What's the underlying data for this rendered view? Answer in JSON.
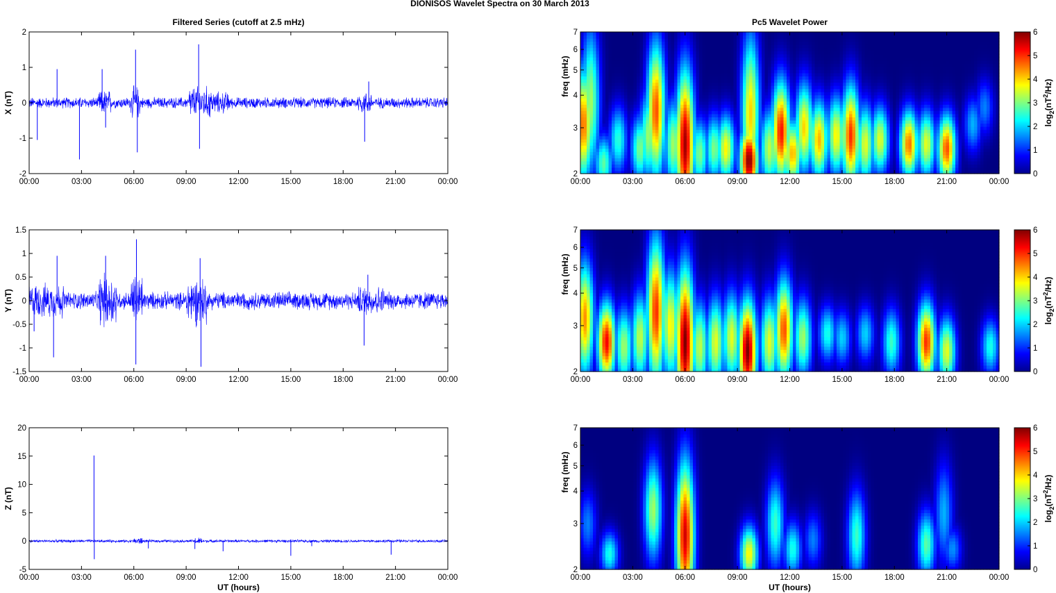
{
  "figure": {
    "suptitle": "DIONISOS Wavelet Spectra on 30 March     2013",
    "left_title": "Filtered Series (cutoff at 2.5 mHz)",
    "right_title": "Pc5 Wavelet Power"
  },
  "chart_data": [
    {
      "type": "line",
      "title": "Filtered Series (cutoff at 2.5 mHz)",
      "xlabel": "",
      "ylabel": "X (nT)",
      "xlim": [
        "00:00",
        "00:00"
      ],
      "xticks": [
        "00:00",
        "03:00",
        "06:00",
        "09:00",
        "12:00",
        "15:00",
        "18:00",
        "21:00",
        "00:00"
      ],
      "ylim": [
        -2,
        2
      ],
      "yticks": [
        "-2",
        "-1",
        "0",
        "1",
        "2"
      ],
      "yticks_values": [
        -2,
        -1,
        0,
        1,
        2
      ],
      "series_color": "#0000ff",
      "background_amplitude_nT": 0.15,
      "spikes": [
        {
          "x": "00:28",
          "y": -1.05
        },
        {
          "x": "01:36",
          "y": 0.95
        },
        {
          "x": "02:53",
          "y": -1.6
        },
        {
          "x": "04:11",
          "y": 0.95
        },
        {
          "x": "04:23",
          "y": -0.7
        },
        {
          "x": "06:06",
          "y": 1.5
        },
        {
          "x": "06:12",
          "y": -1.4
        },
        {
          "x": "09:43",
          "y": 1.65
        },
        {
          "x": "09:46",
          "y": -1.3
        },
        {
          "x": "19:14",
          "y": -1.1
        },
        {
          "x": "19:28",
          "y": 0.6
        }
      ],
      "bursts": [
        {
          "start": "04:00",
          "end": "04:40",
          "amp": 0.35
        },
        {
          "start": "05:50",
          "end": "06:20",
          "amp": 0.45
        },
        {
          "start": "09:10",
          "end": "10:30",
          "amp": 0.45
        },
        {
          "start": "10:30",
          "end": "11:30",
          "amp": 0.3
        },
        {
          "start": "18:50",
          "end": "19:40",
          "amp": 0.3
        }
      ]
    },
    {
      "type": "line",
      "title": "",
      "xlabel": "",
      "ylabel": "Y (nT)",
      "xlim": [
        "00:00",
        "00:00"
      ],
      "xticks": [
        "00:00",
        "03:00",
        "06:00",
        "09:00",
        "12:00",
        "15:00",
        "18:00",
        "21:00",
        "00:00"
      ],
      "ylim": [
        -1.5,
        1.5
      ],
      "yticks": [
        "-1.5",
        "-1",
        "-0.5",
        "0",
        "0.5",
        "1",
        "1.5"
      ],
      "yticks_values": [
        -1.5,
        -1,
        -0.5,
        0,
        0.5,
        1,
        1.5
      ],
      "series_color": "#0000ff",
      "background_amplitude_nT": 0.18,
      "spikes": [
        {
          "x": "00:17",
          "y": -0.65
        },
        {
          "x": "01:24",
          "y": -1.2
        },
        {
          "x": "01:36",
          "y": 0.95
        },
        {
          "x": "04:23",
          "y": 0.95
        },
        {
          "x": "06:09",
          "y": 1.3
        },
        {
          "x": "06:07",
          "y": -1.35
        },
        {
          "x": "09:48",
          "y": 0.9
        },
        {
          "x": "09:51",
          "y": -1.4
        },
        {
          "x": "19:12",
          "y": -0.95
        },
        {
          "x": "19:25",
          "y": 0.55
        }
      ],
      "bursts": [
        {
          "start": "04:00",
          "end": "05:00",
          "amp": 0.55
        },
        {
          "start": "05:50",
          "end": "06:30",
          "amp": 0.55
        },
        {
          "start": "09:00",
          "end": "10:10",
          "amp": 0.5
        },
        {
          "start": "00:00",
          "end": "02:00",
          "amp": 0.35
        },
        {
          "start": "18:50",
          "end": "20:20",
          "amp": 0.3
        }
      ]
    },
    {
      "type": "line",
      "title": "",
      "xlabel": "UT (hours)",
      "ylabel": "Z (nT)",
      "xlim": [
        "00:00",
        "00:00"
      ],
      "xticks": [
        "00:00",
        "03:00",
        "06:00",
        "09:00",
        "12:00",
        "15:00",
        "18:00",
        "21:00",
        "00:00"
      ],
      "ylim": [
        -5,
        20
      ],
      "yticks": [
        "-5",
        "0",
        "5",
        "10",
        "15",
        "20"
      ],
      "yticks_values": [
        -5,
        0,
        5,
        10,
        15,
        20
      ],
      "series_color": "#0000ff",
      "background_amplitude_nT": 0.25,
      "spikes": [
        {
          "x": "03:43",
          "y": 15.1
        },
        {
          "x": "03:44",
          "y": -3.2
        },
        {
          "x": "06:50",
          "y": -1.3
        },
        {
          "x": "09:30",
          "y": -1.4
        },
        {
          "x": "11:07",
          "y": -1.8
        },
        {
          "x": "15:00",
          "y": -2.6
        },
        {
          "x": "16:12",
          "y": -0.9
        },
        {
          "x": "20:45",
          "y": -2.4
        }
      ],
      "bursts": [
        {
          "start": "06:00",
          "end": "06:30",
          "amp": 0.6
        },
        {
          "start": "09:30",
          "end": "10:00",
          "amp": 0.6
        }
      ]
    },
    {
      "type": "heatmap",
      "title": "Pc5 Wavelet Power",
      "xlabel": "",
      "ylabel": "freq (mHz)",
      "xticks": [
        "00:00",
        "03:00",
        "06:00",
        "09:00",
        "12:00",
        "15:00",
        "18:00",
        "21:00",
        "00:00"
      ],
      "yscale": "log",
      "ylim": [
        2,
        7
      ],
      "yticks": [
        "2",
        "3",
        "4",
        "5",
        "6",
        "7"
      ],
      "yticks_values": [
        2,
        3,
        4,
        5,
        6,
        7
      ],
      "colorbar": {
        "label": "log2(nT2/Hz)",
        "label_main": "log",
        "label_sub": "2",
        "label_rest": "(nT",
        "label_sup": "2",
        "label_end": "/Hz)",
        "range": [
          0,
          6
        ],
        "ticks": [
          "0",
          "1",
          "2",
          "3",
          "4",
          "5",
          "6"
        ],
        "colormap": "jet"
      },
      "blobs": [
        {
          "t": "00:10",
          "f": 3.1,
          "power": 4.6,
          "fwidth": 1.0
        },
        {
          "t": "00:35",
          "f": 3.8,
          "power": 3.2,
          "fwidth": 1.3
        },
        {
          "t": "01:20",
          "f": 2.2,
          "power": 2.8,
          "fwidth": 0.5
        },
        {
          "t": "02:10",
          "f": 2.7,
          "power": 2.5,
          "fwidth": 0.6
        },
        {
          "t": "03:25",
          "f": 2.5,
          "power": 3.0,
          "fwidth": 0.6
        },
        {
          "t": "03:55",
          "f": 2.8,
          "power": 3.2,
          "fwidth": 0.8
        },
        {
          "t": "04:20",
          "f": 3.5,
          "power": 4.8,
          "fwidth": 1.2
        },
        {
          "t": "05:20",
          "f": 2.6,
          "power": 3.2,
          "fwidth": 0.8
        },
        {
          "t": "06:00",
          "f": 2.6,
          "power": 5.8,
          "fwidth": 1.3
        },
        {
          "t": "06:50",
          "f": 2.4,
          "power": 3.0,
          "fwidth": 0.6
        },
        {
          "t": "07:40",
          "f": 2.5,
          "power": 3.0,
          "fwidth": 0.6
        },
        {
          "t": "08:20",
          "f": 2.5,
          "power": 3.8,
          "fwidth": 0.6
        },
        {
          "t": "09:40",
          "f": 2.25,
          "power": 6.0,
          "fwidth": 0.6
        },
        {
          "t": "09:45",
          "f": 3.4,
          "power": 4.0,
          "fwidth": 1.4
        },
        {
          "t": "10:50",
          "f": 2.5,
          "power": 3.4,
          "fwidth": 0.7
        },
        {
          "t": "11:30",
          "f": 2.9,
          "power": 5.2,
          "fwidth": 0.9
        },
        {
          "t": "12:10",
          "f": 2.4,
          "power": 4.2,
          "fwidth": 0.6
        },
        {
          "t": "12:50",
          "f": 3.0,
          "power": 4.0,
          "fwidth": 0.8
        },
        {
          "t": "13:40",
          "f": 2.7,
          "power": 4.2,
          "fwidth": 0.7
        },
        {
          "t": "14:40",
          "f": 2.8,
          "power": 3.8,
          "fwidth": 0.7
        },
        {
          "t": "15:30",
          "f": 2.8,
          "power": 5.0,
          "fwidth": 0.9
        },
        {
          "t": "16:20",
          "f": 2.6,
          "power": 3.6,
          "fwidth": 0.7
        },
        {
          "t": "17:10",
          "f": 2.7,
          "power": 3.6,
          "fwidth": 0.6
        },
        {
          "t": "18:50",
          "f": 2.6,
          "power": 4.6,
          "fwidth": 0.6
        },
        {
          "t": "19:50",
          "f": 2.6,
          "power": 3.6,
          "fwidth": 0.6
        },
        {
          "t": "21:00",
          "f": 2.5,
          "power": 4.8,
          "fwidth": 0.6
        },
        {
          "t": "22:30",
          "f": 3.1,
          "power": 1.8,
          "fwidth": 0.5
        },
        {
          "t": "23:10",
          "f": 3.6,
          "power": 1.5,
          "fwidth": 0.5
        }
      ]
    },
    {
      "type": "heatmap",
      "title": "",
      "xlabel": "",
      "ylabel": "freq (mHz)",
      "xticks": [
        "00:00",
        "03:00",
        "06:00",
        "09:00",
        "12:00",
        "15:00",
        "18:00",
        "21:00",
        "00:00"
      ],
      "yscale": "log",
      "ylim": [
        2,
        7
      ],
      "yticks": [
        "2",
        "3",
        "4",
        "5",
        "6",
        "7"
      ],
      "yticks_values": [
        2,
        3,
        4,
        5,
        6,
        7
      ],
      "colorbar": {
        "label": "log2(nT2/Hz)",
        "label_main": "log",
        "label_sub": "2",
        "label_rest": "(nT",
        "label_sup": "2",
        "label_end": "/Hz)",
        "range": [
          0,
          6
        ],
        "ticks": [
          "0",
          "1",
          "2",
          "3",
          "4",
          "5",
          "6"
        ],
        "colormap": "jet"
      },
      "blobs": [
        {
          "t": "00:15",
          "f": 3.2,
          "power": 4.4,
          "fwidth": 1.0
        },
        {
          "t": "01:30",
          "f": 2.6,
          "power": 5.3,
          "fwidth": 0.7
        },
        {
          "t": "02:30",
          "f": 2.5,
          "power": 3.2,
          "fwidth": 0.7
        },
        {
          "t": "03:25",
          "f": 2.7,
          "power": 3.4,
          "fwidth": 0.8
        },
        {
          "t": "04:20",
          "f": 3.4,
          "power": 5.0,
          "fwidth": 1.3
        },
        {
          "t": "05:10",
          "f": 3.0,
          "power": 3.8,
          "fwidth": 1.0
        },
        {
          "t": "06:00",
          "f": 2.6,
          "power": 6.0,
          "fwidth": 1.3
        },
        {
          "t": "06:50",
          "f": 2.5,
          "power": 3.4,
          "fwidth": 0.8
        },
        {
          "t": "07:45",
          "f": 2.6,
          "power": 3.6,
          "fwidth": 0.8
        },
        {
          "t": "08:40",
          "f": 2.7,
          "power": 3.6,
          "fwidth": 0.8
        },
        {
          "t": "09:35",
          "f": 2.4,
          "power": 6.0,
          "fwidth": 0.9
        },
        {
          "t": "10:50",
          "f": 2.6,
          "power": 3.6,
          "fwidth": 0.8
        },
        {
          "t": "11:40",
          "f": 2.9,
          "power": 4.8,
          "fwidth": 0.9
        },
        {
          "t": "12:45",
          "f": 2.7,
          "power": 3.2,
          "fwidth": 0.7
        },
        {
          "t": "14:10",
          "f": 2.8,
          "power": 2.4,
          "fwidth": 0.5
        },
        {
          "t": "15:00",
          "f": 2.7,
          "power": 2.0,
          "fwidth": 0.5
        },
        {
          "t": "16:20",
          "f": 2.8,
          "power": 2.0,
          "fwidth": 0.5
        },
        {
          "t": "17:50",
          "f": 2.6,
          "power": 2.6,
          "fwidth": 0.6
        },
        {
          "t": "19:50",
          "f": 2.6,
          "power": 5.0,
          "fwidth": 0.7
        },
        {
          "t": "21:00",
          "f": 2.4,
          "power": 3.6,
          "fwidth": 0.6
        },
        {
          "t": "23:30",
          "f": 2.5,
          "power": 2.4,
          "fwidth": 0.5
        }
      ]
    },
    {
      "type": "heatmap",
      "title": "",
      "xlabel": "UT (hours)",
      "ylabel": "freq (mHz)",
      "xticks": [
        "00:00",
        "03:00",
        "06:00",
        "09:00",
        "12:00",
        "15:00",
        "18:00",
        "21:00",
        "00:00"
      ],
      "yscale": "log",
      "ylim": [
        2,
        7
      ],
      "yticks": [
        "2",
        "3",
        "4",
        "5",
        "6",
        "7"
      ],
      "yticks_values": [
        2,
        3,
        4,
        5,
        6,
        7
      ],
      "colorbar": {
        "label": "log2(nT2/Hz)",
        "label_main": "log",
        "label_sub": "2",
        "label_rest": "(nT",
        "label_sup": "2",
        "label_end": "/Hz)",
        "range": [
          0,
          6
        ],
        "ticks": [
          "0",
          "1",
          "2",
          "3",
          "4",
          "5",
          "6"
        ],
        "colormap": "jet"
      },
      "blobs": [
        {
          "t": "00:25",
          "f": 3.0,
          "power": 1.5,
          "fwidth": 0.6
        },
        {
          "t": "01:40",
          "f": 2.3,
          "power": 2.4,
          "fwidth": 0.4
        },
        {
          "t": "04:10",
          "f": 3.4,
          "power": 3.2,
          "fwidth": 0.9
        },
        {
          "t": "06:00",
          "f": 2.7,
          "power": 5.5,
          "fwidth": 1.3
        },
        {
          "t": "09:40",
          "f": 2.3,
          "power": 3.8,
          "fwidth": 0.5
        },
        {
          "t": "11:10",
          "f": 3.0,
          "power": 2.6,
          "fwidth": 0.8
        },
        {
          "t": "12:10",
          "f": 2.4,
          "power": 2.4,
          "fwidth": 0.5
        },
        {
          "t": "13:20",
          "f": 2.6,
          "power": 1.5,
          "fwidth": 0.5
        },
        {
          "t": "15:50",
          "f": 2.7,
          "power": 2.6,
          "fwidth": 0.8
        },
        {
          "t": "19:50",
          "f": 2.5,
          "power": 2.8,
          "fwidth": 0.6
        },
        {
          "t": "20:50",
          "f": 3.3,
          "power": 1.8,
          "fwidth": 0.9
        },
        {
          "t": "21:20",
          "f": 2.4,
          "power": 1.6,
          "fwidth": 0.4
        }
      ]
    }
  ]
}
